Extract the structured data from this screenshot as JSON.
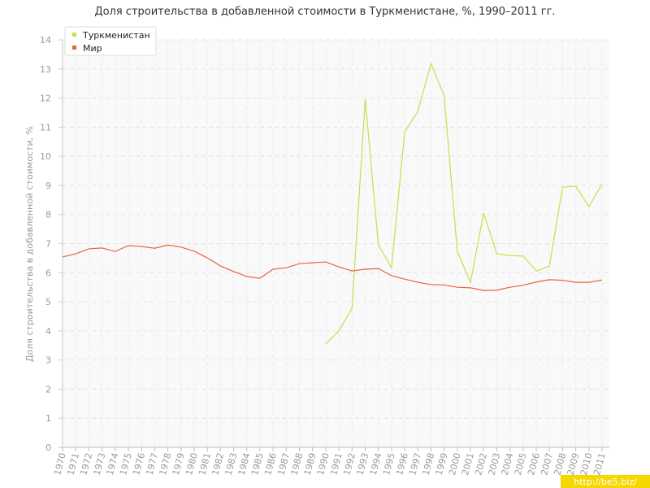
{
  "chart_data": {
    "type": "line",
    "title": "Доля строительства в добавленной стоимости в Туркменистане, %, 1990–2011 гг.",
    "y_label": "Доля строительства в добавленной стоимости, %",
    "watermark": "http://be5.biz/",
    "x": [
      1970,
      1971,
      1972,
      1973,
      1974,
      1975,
      1976,
      1977,
      1978,
      1979,
      1980,
      1981,
      1982,
      1983,
      1984,
      1985,
      1986,
      1987,
      1988,
      1989,
      1990,
      1991,
      1992,
      1993,
      1994,
      1995,
      1996,
      1997,
      1998,
      1999,
      2000,
      2001,
      2002,
      2003,
      2004,
      2005,
      2006,
      2007,
      2008,
      2009,
      2010,
      2011
    ],
    "xlim": [
      1970,
      2011
    ],
    "xticks": [
      1970,
      1971,
      1972,
      1973,
      1974,
      1975,
      1976,
      1977,
      1978,
      1979,
      1980,
      1981,
      1982,
      1983,
      1984,
      1985,
      1986,
      1987,
      1988,
      1989,
      1990,
      1991,
      1992,
      1993,
      1994,
      1995,
      1996,
      1997,
      1998,
      1999,
      2000,
      2001,
      2002,
      2003,
      2004,
      2005,
      2006,
      2007,
      2008,
      2009,
      2010,
      2011
    ],
    "ylim": [
      0,
      14
    ],
    "yticks": [
      0,
      1,
      2,
      3,
      4,
      5,
      6,
      7,
      8,
      9,
      10,
      11,
      12,
      13,
      14
    ],
    "grid": true,
    "legend": "top-left",
    "series": [
      {
        "name": "Туркменистан",
        "color": "#c5e04a",
        "values": [
          null,
          null,
          null,
          null,
          null,
          null,
          null,
          null,
          null,
          null,
          null,
          null,
          null,
          null,
          null,
          null,
          null,
          null,
          null,
          null,
          3.55,
          4.0,
          4.78,
          11.96,
          6.96,
          6.17,
          10.84,
          11.54,
          13.19,
          12.07,
          6.73,
          5.67,
          8.05,
          6.65,
          6.59,
          6.57,
          6.06,
          6.23,
          8.94,
          8.97,
          8.27,
          9.05
        ]
      },
      {
        "name": "Мир",
        "color": "#e8643c",
        "values": [
          6.54,
          6.65,
          6.82,
          6.85,
          6.73,
          6.93,
          6.9,
          6.84,
          6.95,
          6.88,
          6.74,
          6.51,
          6.23,
          6.04,
          5.87,
          5.81,
          6.12,
          6.17,
          6.31,
          6.34,
          6.37,
          6.2,
          6.06,
          6.12,
          6.14,
          5.9,
          5.78,
          5.67,
          5.59,
          5.58,
          5.5,
          5.48,
          5.39,
          5.4,
          5.5,
          5.57,
          5.68,
          5.76,
          5.74,
          5.67,
          5.67,
          5.75
        ]
      }
    ]
  }
}
